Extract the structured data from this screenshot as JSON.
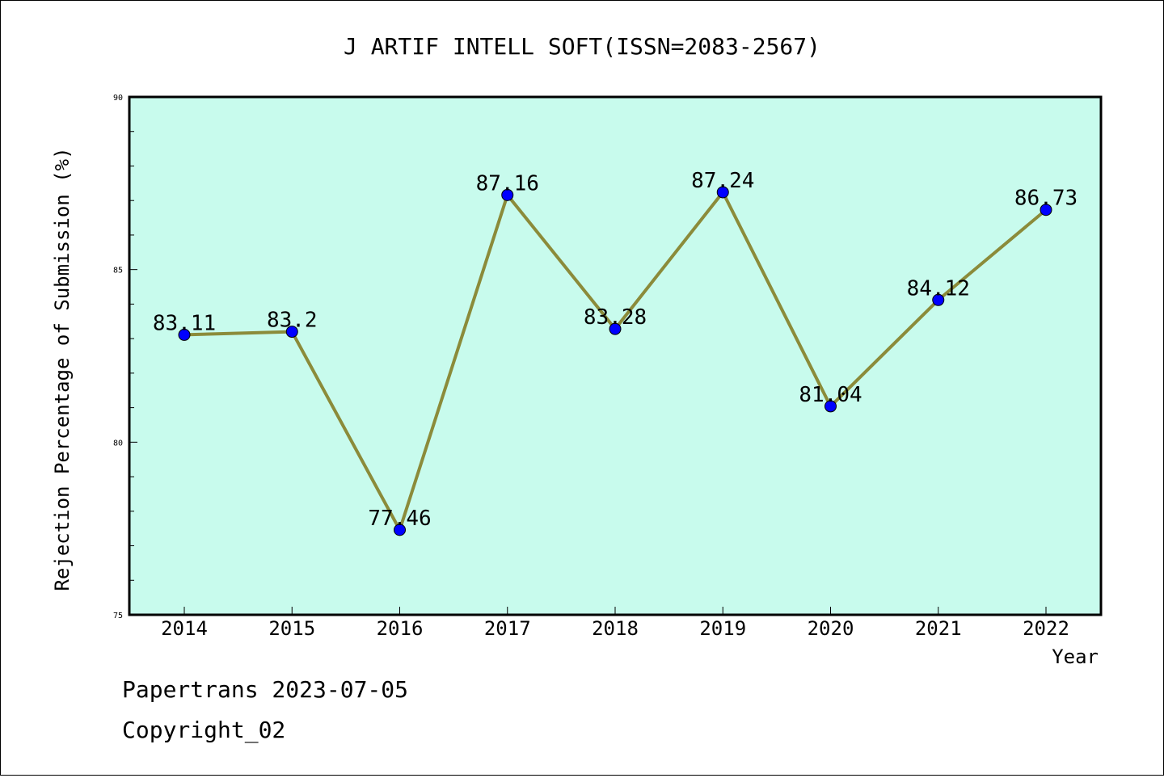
{
  "chart_data": {
    "type": "line",
    "title": "J ARTIF INTELL SOFT(ISSN=2083-2567)",
    "xlabel": "Year",
    "ylabel": "Rejection Percentage of Submission (%)",
    "categories": [
      "2014",
      "2015",
      "2016",
      "2017",
      "2018",
      "2019",
      "2020",
      "2021",
      "2022"
    ],
    "series": [
      {
        "values": [
          83.11,
          83.2,
          77.46,
          87.16,
          83.28,
          87.24,
          81.04,
          84.12,
          86.73
        ],
        "labels": [
          "83.11",
          "83.2",
          "77.46",
          "87.16",
          "83.28",
          "87.24",
          "81.04",
          "84.12",
          "86.73"
        ]
      }
    ],
    "ylim": [
      75,
      90
    ],
    "yticks": [
      "75",
      "80",
      "85",
      "90"
    ],
    "grid": false,
    "colors": {
      "plot_background": "#c8fbed",
      "line": "#8b8b3a",
      "marker": "#0000ff"
    }
  },
  "footer": {
    "line1": "Papertrans 2023-07-05",
    "line2": "Copyright_02"
  }
}
